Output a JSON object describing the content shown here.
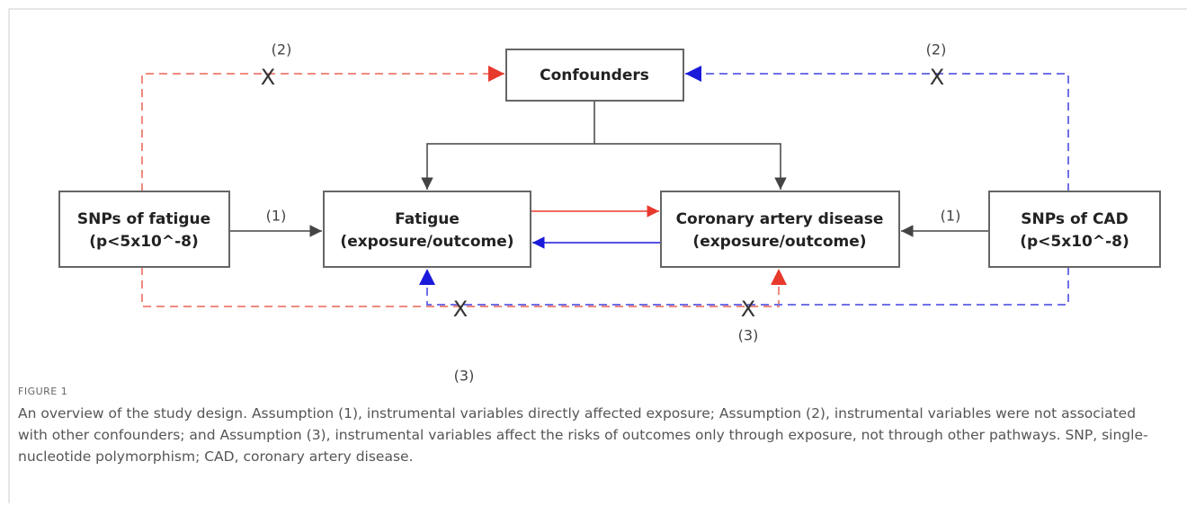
{
  "nodes": [
    {
      "lines": [
        "Confounders"
      ]
    },
    {
      "lines": [
        "SNPs of fatigue",
        "(p<5x10^-8)"
      ]
    },
    {
      "lines": [
        "Fatigue",
        "(exposure/outcome)"
      ]
    },
    {
      "lines": [
        "Coronary artery disease",
        "(exposure/outcome)"
      ]
    },
    {
      "lines": [
        "SNPs of CAD",
        "(p<5x10^-8)"
      ]
    }
  ],
  "labels": [
    "(2)",
    "(2)",
    "(1)",
    "(1)",
    "(3)",
    "(3)"
  ],
  "crosses": [
    "X",
    "X",
    "X",
    "X"
  ],
  "caption": {
    "label": "FIGURE 1",
    "text": "An overview of the study design. Assumption (1), instrumental variables directly affected exposure; Assumption (2), instrumental variables were not associated with other confounders; and Assumption (3), instrumental variables affect the risks of outcomes only through exposure, not through other pathways. SNP, single-nucleotide polymorphism; CAD, coronary artery disease."
  }
}
